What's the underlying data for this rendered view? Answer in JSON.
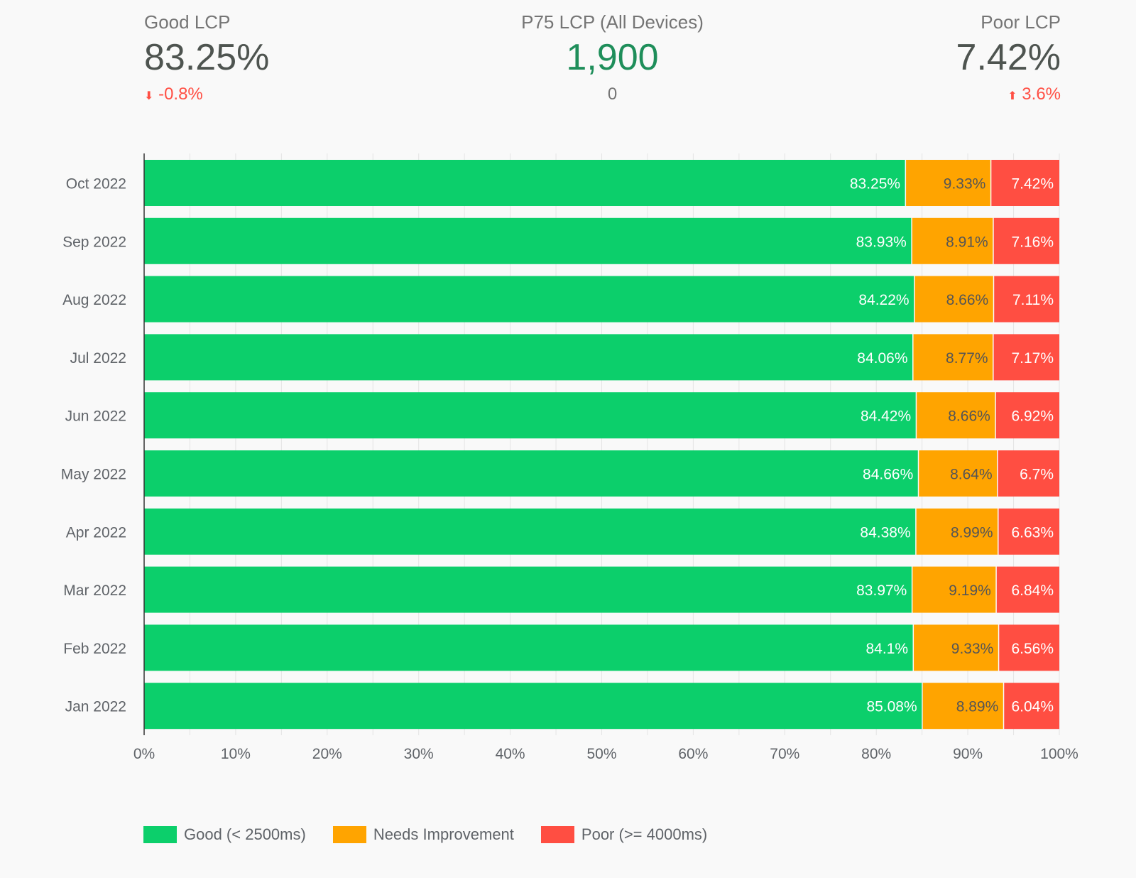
{
  "kpis": {
    "good": {
      "title": "Good LCP",
      "value": "83.25%",
      "delta": "-0.8%",
      "direction": "down"
    },
    "p75": {
      "title": "P75 LCP (All Devices)",
      "value": "1,900",
      "delta": "0"
    },
    "poor": {
      "title": "Poor LCP",
      "value": "7.42%",
      "delta": "3.6%",
      "direction": "up"
    }
  },
  "colors": {
    "good": "#0ccf6b",
    "needs": "#ffa400",
    "poor": "#ff4e42"
  },
  "chart_data": {
    "type": "bar",
    "orientation": "horizontal",
    "stacked": true,
    "categories": [
      "Oct 2022",
      "Sep 2022",
      "Aug 2022",
      "Jul 2022",
      "Jun 2022",
      "May 2022",
      "Apr 2022",
      "Mar 2022",
      "Feb 2022",
      "Jan 2022"
    ],
    "series": [
      {
        "name": "Good (< 2500ms)",
        "values": [
          83.25,
          83.93,
          84.22,
          84.06,
          84.42,
          84.66,
          84.38,
          83.97,
          84.1,
          85.08
        ],
        "labels": [
          "83.25%",
          "83.93%",
          "84.22%",
          "84.06%",
          "84.42%",
          "84.66%",
          "84.38%",
          "83.97%",
          "84.1%",
          "85.08%"
        ]
      },
      {
        "name": "Needs Improvement",
        "values": [
          9.33,
          8.91,
          8.66,
          8.77,
          8.66,
          8.64,
          8.99,
          9.19,
          9.33,
          8.89
        ],
        "labels": [
          "9.33%",
          "8.91%",
          "8.66%",
          "8.77%",
          "8.66%",
          "8.64%",
          "8.99%",
          "9.19%",
          "9.33%",
          "8.89%"
        ]
      },
      {
        "name": "Poor (>= 4000ms)",
        "values": [
          7.42,
          7.16,
          7.11,
          7.17,
          6.92,
          6.7,
          6.63,
          6.84,
          6.56,
          6.04
        ],
        "labels": [
          "7.42%",
          "7.16%",
          "7.11%",
          "7.17%",
          "6.92%",
          "6.7%",
          "6.63%",
          "6.84%",
          "6.56%",
          "6.04%"
        ]
      }
    ],
    "xlim": [
      0,
      100
    ],
    "xticks": [
      "0%",
      "10%",
      "20%",
      "30%",
      "40%",
      "50%",
      "60%",
      "70%",
      "80%",
      "90%",
      "100%"
    ],
    "grid": true,
    "legend": "bottom-left"
  }
}
